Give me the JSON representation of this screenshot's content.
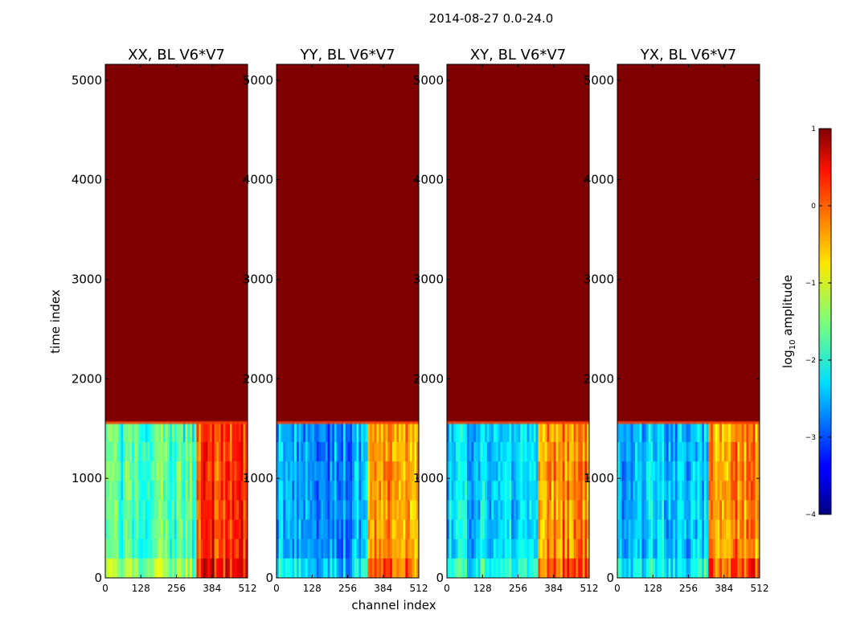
{
  "figure": {
    "suptitle": "2014-08-27 0.0-24.0"
  },
  "chart_data": {
    "type": "heatmap",
    "xlabel": "channel index",
    "ylabel": "time index",
    "x_ticks": [
      0,
      128,
      256,
      384,
      512
    ],
    "y_ticks": [
      0,
      1000,
      2000,
      3000,
      4000,
      5000
    ],
    "xlim": [
      0,
      512
    ],
    "ylim": [
      0,
      5160
    ],
    "saturated_from_time": 1560,
    "bright_channel_band": [
      326,
      512
    ],
    "panels": [
      {
        "title": "XX, BL V6*V7",
        "base_level": -1.8,
        "band_level": 0.1
      },
      {
        "title": "YY, BL V6*V7",
        "base_level": -2.6,
        "band_level": -0.4
      },
      {
        "title": "XY, BL V6*V7",
        "base_level": -2.3,
        "band_level": -0.3
      },
      {
        "title": "YX, BL V6*V7",
        "base_level": -2.4,
        "band_level": -0.3
      }
    ],
    "colorbar": {
      "label": "log10 amplitude",
      "label_main": "log",
      "label_sub": "10",
      "label_tail": " amplitude",
      "range": [
        -4,
        1
      ],
      "ticks": [
        1,
        0,
        -1,
        -2,
        -3,
        -4
      ],
      "tick_labels": [
        "1",
        "0",
        "−1",
        "−2",
        "−3",
        "−4"
      ],
      "colormap": "jet",
      "saturated_color": "#7f0000"
    }
  }
}
